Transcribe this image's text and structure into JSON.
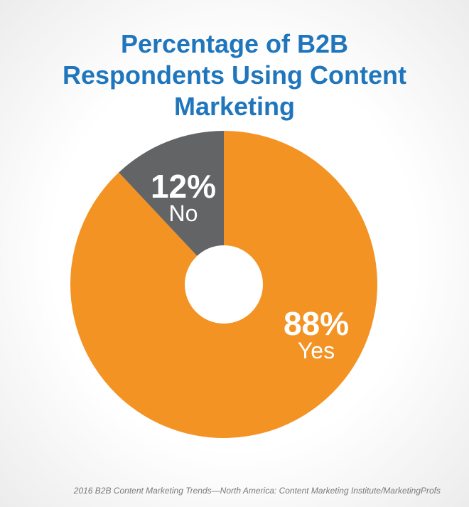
{
  "chart_data": {
    "type": "pie",
    "title": "Percentage of B2B Respondents Using Content Marketing",
    "categories": [
      "Yes",
      "No"
    ],
    "values": [
      88,
      12
    ],
    "value_labels": [
      "88%",
      "12%"
    ],
    "colors": [
      "#f39323",
      "#636466"
    ],
    "source": "2016 B2B Content Marketing Trends—North America: Content Marketing Institute/MarketingProfs"
  }
}
